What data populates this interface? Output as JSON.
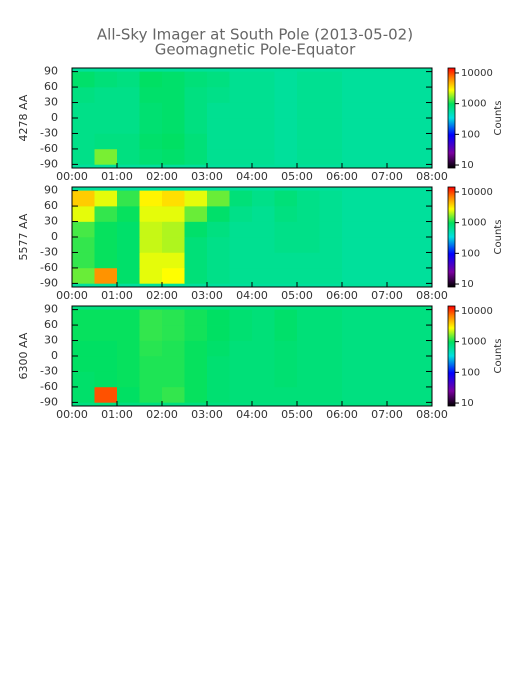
{
  "header": {
    "title": "All-Sky Imager at South Pole (2013-05-02)",
    "subtitle": "Geomagnetic Pole-Equator"
  },
  "chart_data": [
    {
      "type": "heatmap",
      "ylabel": "4278 AA",
      "clabel": "Counts",
      "x_bins": [
        0,
        0.5,
        1,
        1.5,
        2,
        2.5,
        3,
        3.5,
        4,
        4.5,
        5,
        5.5,
        6,
        6.5,
        7,
        7.5,
        8
      ],
      "y_bins": [
        -90,
        -60,
        -30,
        0,
        30,
        60,
        90
      ],
      "z": [
        [
          700,
          1600,
          750,
          850,
          900,
          800,
          650,
          650,
          650,
          600,
          650,
          650,
          600,
          600,
          600,
          600
        ],
        [
          700,
          750,
          750,
          900,
          950,
          800,
          650,
          650,
          650,
          600,
          650,
          650,
          600,
          600,
          600,
          600
        ],
        [
          700,
          700,
          700,
          850,
          900,
          750,
          650,
          650,
          650,
          600,
          650,
          650,
          600,
          600,
          600,
          600
        ],
        [
          700,
          700,
          700,
          850,
          900,
          750,
          650,
          650,
          650,
          600,
          650,
          650,
          600,
          600,
          600,
          600
        ],
        [
          750,
          700,
          700,
          900,
          900,
          750,
          700,
          650,
          650,
          600,
          650,
          650,
          600,
          600,
          600,
          600
        ],
        [
          900,
          800,
          750,
          950,
          900,
          800,
          750,
          650,
          650,
          600,
          650,
          650,
          600,
          600,
          600,
          600
        ]
      ],
      "xlim": [
        0,
        8
      ],
      "ylim": [
        -97,
        97
      ],
      "clim": [
        8,
        14500
      ],
      "log_color": true,
      "xticks": [
        {
          "value": 0,
          "label": "00:00"
        },
        {
          "value": 1,
          "label": "01:00"
        },
        {
          "value": 2,
          "label": "02:00"
        },
        {
          "value": 3,
          "label": "03:00"
        },
        {
          "value": 4,
          "label": "04:00"
        },
        {
          "value": 5,
          "label": "05:00"
        },
        {
          "value": 6,
          "label": "06:00"
        },
        {
          "value": 7,
          "label": "07:00"
        },
        {
          "value": 8,
          "label": "08:00"
        }
      ],
      "yticks": [
        90,
        60,
        30,
        0,
        -30,
        -60,
        -90
      ],
      "cticks": [
        10000,
        1000,
        100,
        10
      ]
    },
    {
      "type": "heatmap",
      "ylabel": "5577 AA",
      "clabel": "Counts",
      "x_bins": [
        0,
        0.5,
        1,
        1.5,
        2,
        2.5,
        3,
        3.5,
        4,
        4.5,
        5,
        5.5,
        6,
        6.5,
        7,
        7.5,
        8
      ],
      "y_bins": [
        -90,
        -60,
        -30,
        0,
        30,
        60,
        90
      ],
      "z": [
        [
          1500,
          6000,
          900,
          2500,
          2800,
          800,
          700,
          650,
          650,
          650,
          650,
          650,
          600,
          600,
          600,
          600
        ],
        [
          1200,
          1000,
          900,
          2500,
          2500,
          800,
          700,
          650,
          650,
          650,
          650,
          650,
          600,
          600,
          600,
          600
        ],
        [
          1200,
          1000,
          900,
          2200,
          2000,
          800,
          700,
          650,
          650,
          700,
          700,
          650,
          600,
          600,
          600,
          600
        ],
        [
          1300,
          1000,
          900,
          2200,
          2000,
          900,
          750,
          650,
          650,
          700,
          700,
          650,
          600,
          600,
          600,
          600
        ],
        [
          2500,
          1200,
          1000,
          2500,
          2500,
          1500,
          900,
          700,
          650,
          750,
          700,
          650,
          600,
          600,
          600,
          600
        ],
        [
          4000,
          2500,
          1200,
          3000,
          3500,
          2500,
          1500,
          800,
          700,
          800,
          700,
          650,
          600,
          600,
          600,
          600
        ]
      ],
      "xlim": [
        0,
        8
      ],
      "ylim": [
        -97,
        97
      ],
      "clim": [
        8,
        14500
      ],
      "log_color": true,
      "xticks": [
        {
          "value": 0,
          "label": "00:00"
        },
        {
          "value": 1,
          "label": "01:00"
        },
        {
          "value": 2,
          "label": "02:00"
        },
        {
          "value": 3,
          "label": "03:00"
        },
        {
          "value": 4,
          "label": "04:00"
        },
        {
          "value": 5,
          "label": "05:00"
        },
        {
          "value": 6,
          "label": "06:00"
        },
        {
          "value": 7,
          "label": "07:00"
        },
        {
          "value": 8,
          "label": "08:00"
        }
      ],
      "yticks": [
        90,
        60,
        30,
        0,
        -30,
        -60,
        -90
      ],
      "cticks": [
        10000,
        1000,
        100,
        10
      ]
    },
    {
      "type": "heatmap",
      "ylabel": "6300 AA",
      "clabel": "Counts",
      "x_bins": [
        0,
        0.5,
        1,
        1.5,
        2,
        2.5,
        3,
        3.5,
        4,
        4.5,
        5,
        5.5,
        6,
        6.5,
        7,
        7.5,
        8
      ],
      "y_bins": [
        -90,
        -60,
        -30,
        0,
        30,
        60,
        90
      ],
      "z": [
        [
          900,
          9000,
          950,
          1100,
          1200,
          1000,
          850,
          800,
          800,
          800,
          800,
          800,
          750,
          750,
          750,
          750
        ],
        [
          900,
          950,
          1000,
          1100,
          1100,
          1000,
          850,
          800,
          800,
          850,
          800,
          800,
          750,
          750,
          750,
          750
        ],
        [
          950,
          950,
          1000,
          1100,
          1100,
          1000,
          850,
          800,
          800,
          850,
          800,
          800,
          750,
          750,
          750,
          750
        ],
        [
          950,
          950,
          1000,
          1150,
          1100,
          1000,
          900,
          800,
          800,
          850,
          800,
          800,
          750,
          750,
          750,
          750
        ],
        [
          1000,
          1000,
          1000,
          1200,
          1150,
          1050,
          950,
          850,
          800,
          900,
          800,
          800,
          750,
          750,
          750,
          750
        ],
        [
          1000,
          1000,
          1000,
          1200,
          1150,
          1050,
          950,
          850,
          800,
          900,
          800,
          800,
          750,
          750,
          750,
          750
        ]
      ],
      "xlim": [
        0,
        8
      ],
      "ylim": [
        -97,
        97
      ],
      "clim": [
        8,
        14500
      ],
      "log_color": true,
      "xticks": [
        {
          "value": 0,
          "label": "00:00"
        },
        {
          "value": 1,
          "label": "01:00"
        },
        {
          "value": 2,
          "label": "02:00"
        },
        {
          "value": 3,
          "label": "03:00"
        },
        {
          "value": 4,
          "label": "04:00"
        },
        {
          "value": 5,
          "label": "05:00"
        },
        {
          "value": 6,
          "label": "06:00"
        },
        {
          "value": 7,
          "label": "07:00"
        },
        {
          "value": 8,
          "label": "08:00"
        }
      ],
      "yticks": [
        90,
        60,
        30,
        0,
        -30,
        -60,
        -90
      ],
      "cticks": [
        10000,
        1000,
        100,
        10
      ]
    }
  ]
}
